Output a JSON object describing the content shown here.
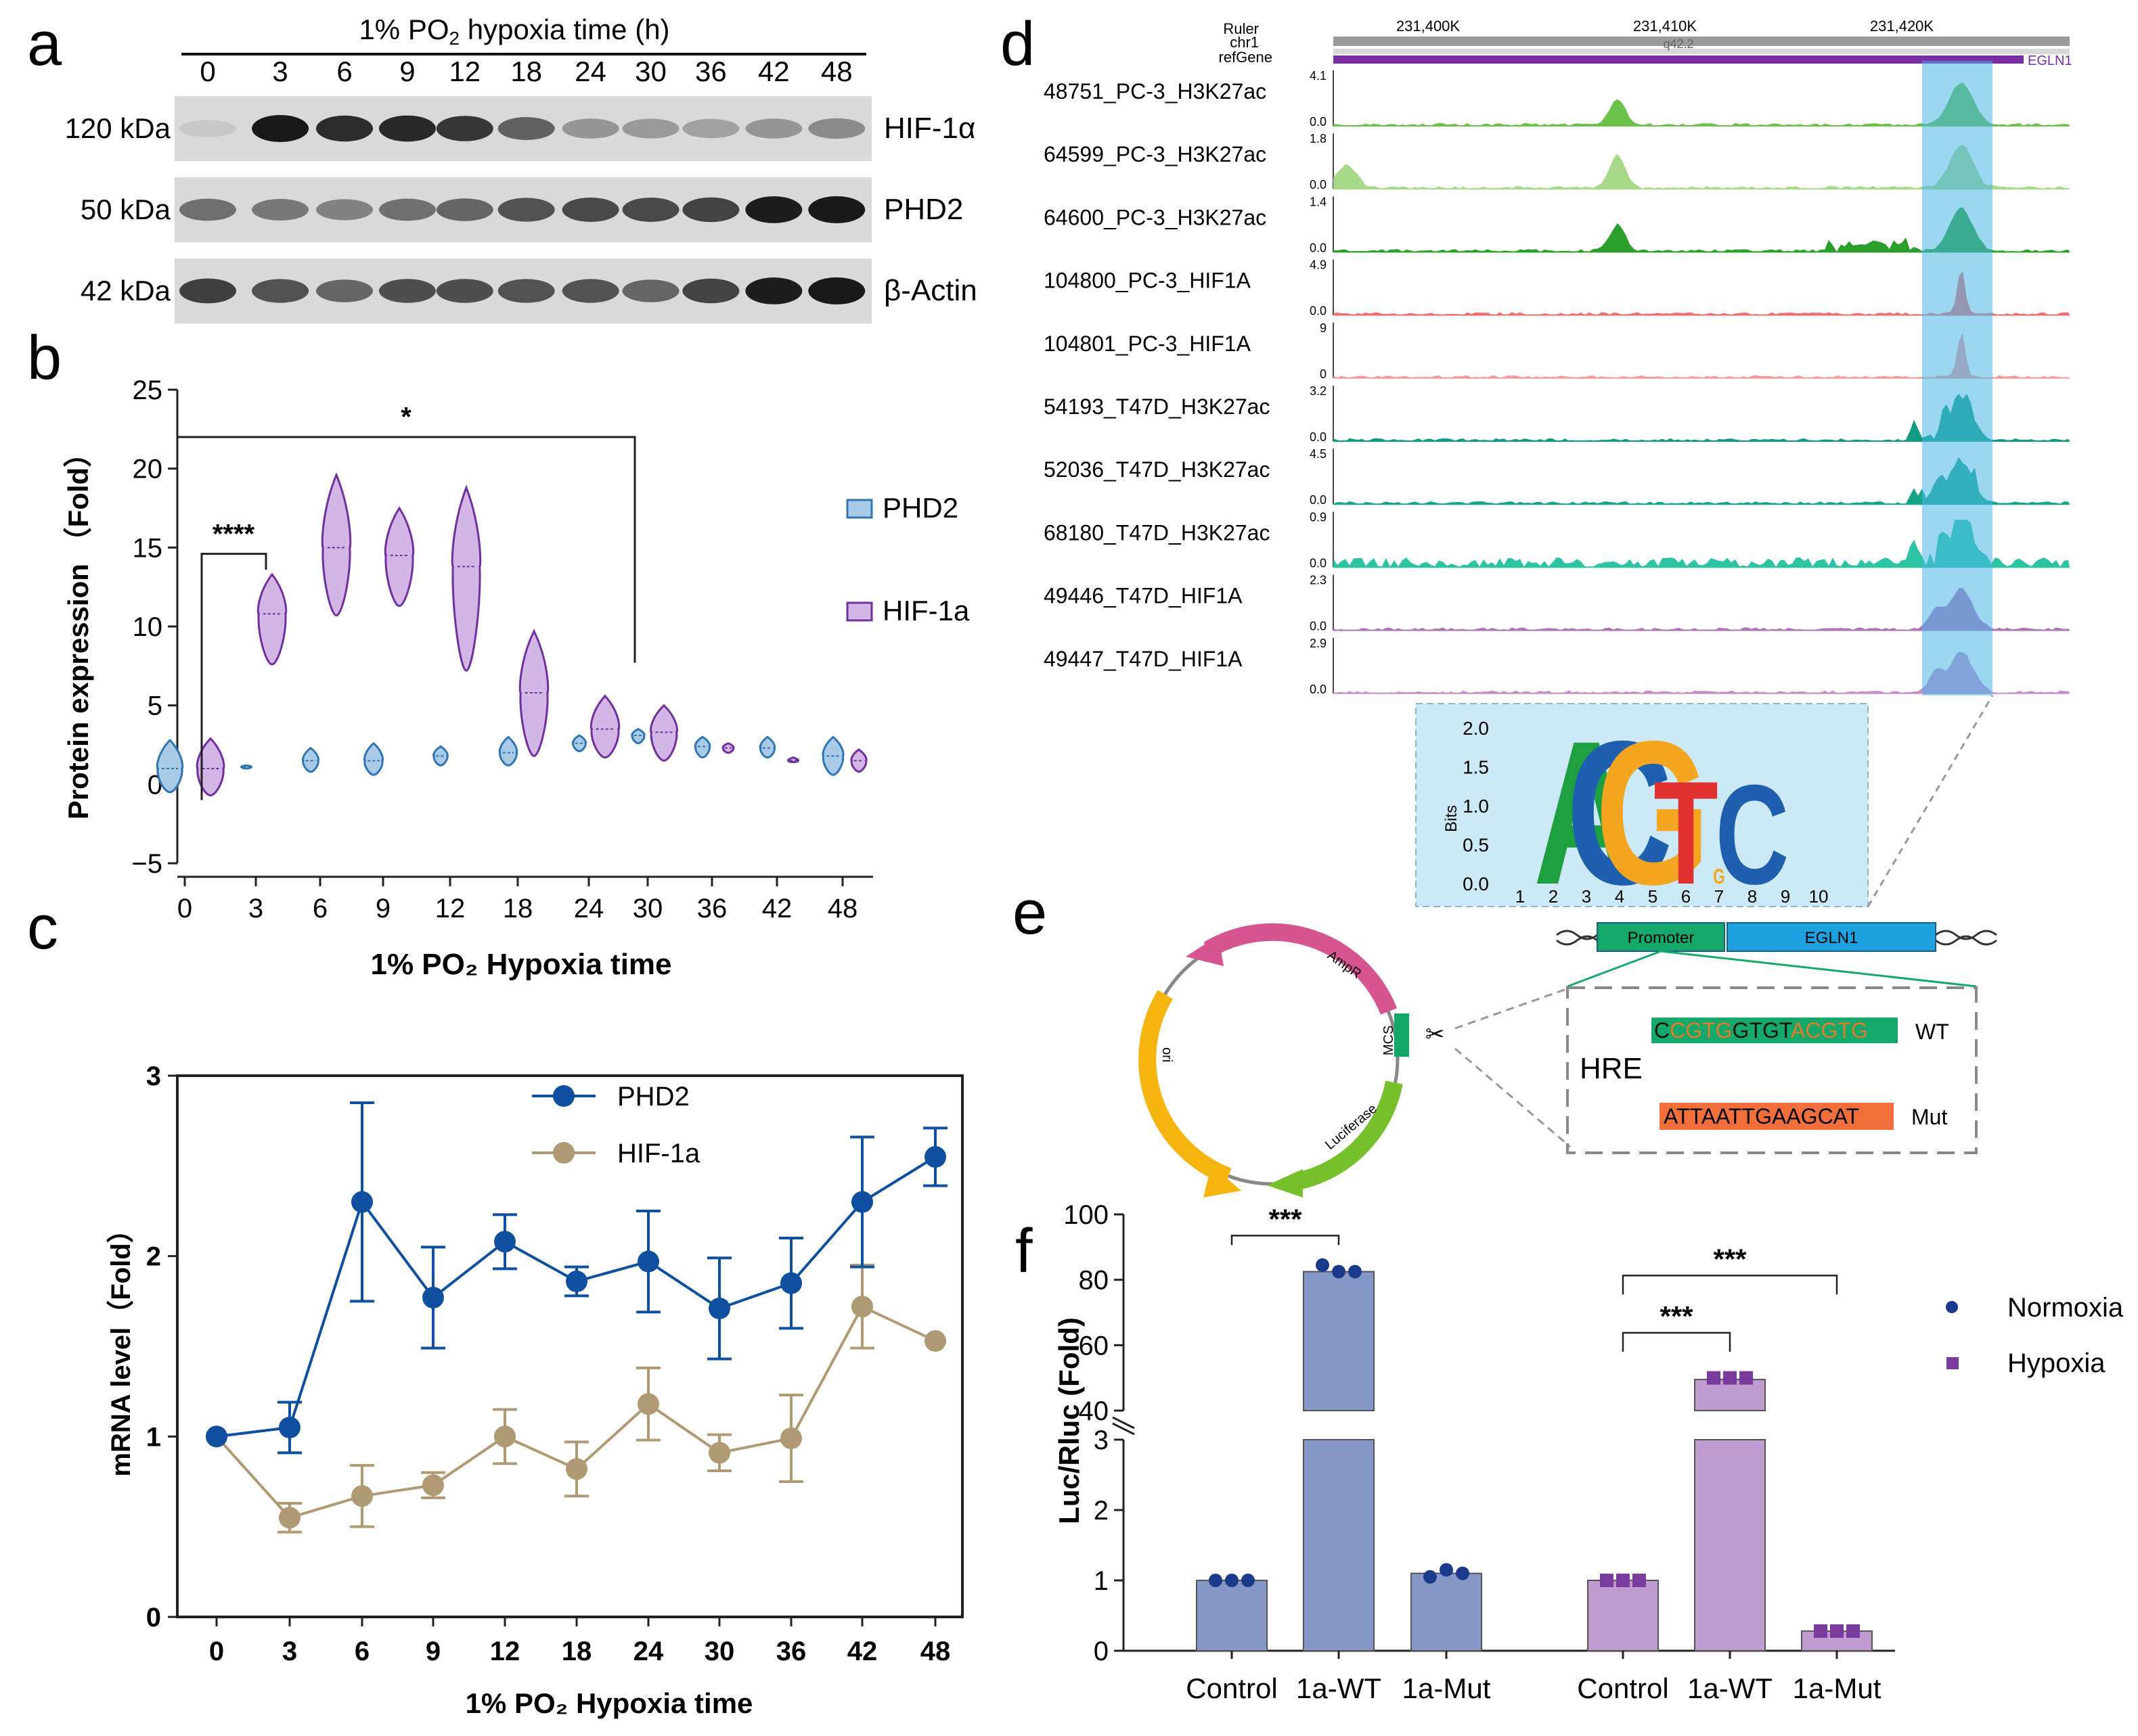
{
  "panel_letters": [
    "a",
    "b",
    "c",
    "d",
    "e",
    "f"
  ],
  "panel_a": {
    "title_prefix": "1% PO",
    "title_sub": "2",
    "title_suffix": " hypoxia time (h)",
    "timepoints": [
      "0",
      "3",
      "6",
      "9",
      "12",
      "18",
      "24",
      "30",
      "36",
      "42",
      "48"
    ],
    "rows": [
      {
        "mw": "120 kDa",
        "protein": "HIF-1α",
        "intensity": [
          0.08,
          1.0,
          0.9,
          0.92,
          0.85,
          0.62,
          0.35,
          0.32,
          0.28,
          0.35,
          0.4
        ]
      },
      {
        "mw": "50 kDa",
        "protein": "PHD2",
        "intensity": [
          0.55,
          0.5,
          0.45,
          0.55,
          0.6,
          0.7,
          0.75,
          0.75,
          0.78,
          0.98,
          1.0
        ]
      },
      {
        "mw": "42 kDa",
        "protein": "β-Actin",
        "intensity": [
          0.8,
          0.7,
          0.6,
          0.72,
          0.72,
          0.7,
          0.7,
          0.6,
          0.78,
          0.98,
          1.0
        ]
      }
    ]
  },
  "chart_data": [
    {
      "type": "violin",
      "panel": "b",
      "ylabel": "Protein expression （Fold）",
      "xlabel": "1% PO₂ Hypoxia time",
      "categories": [
        "0",
        "3",
        "6",
        "9",
        "12",
        "18",
        "24",
        "30",
        "36",
        "42",
        "48"
      ],
      "ylim": [
        -5,
        25
      ],
      "yticks": [
        "25",
        "20",
        "15",
        "10",
        "5",
        "0",
        "−5"
      ],
      "series": [
        {
          "name": "PHD2",
          "color": "#2e75b6",
          "fill": "#a9cbe8",
          "median": [
            1.0,
            1.1,
            1.5,
            1.5,
            1.8,
            2.0,
            2.6,
            3.1,
            2.4,
            2.3,
            1.8
          ],
          "min": [
            -0.5,
            1.0,
            0.8,
            0.6,
            1.2,
            1.2,
            2.1,
            2.6,
            1.7,
            1.7,
            0.6
          ],
          "max": [
            2.8,
            1.2,
            2.3,
            2.6,
            2.4,
            3.0,
            3.1,
            3.5,
            3.0,
            3.0,
            3.0
          ]
        },
        {
          "name": "HIF-1a",
          "color": "#7030a0",
          "fill": "#d3b6e6",
          "median": [
            1.0,
            10.8,
            15.0,
            14.5,
            13.8,
            5.8,
            3.5,
            3.3,
            2.3,
            1.5,
            1.5
          ],
          "min": [
            -0.7,
            7.6,
            10.7,
            11.3,
            7.2,
            1.8,
            1.7,
            1.5,
            2.0,
            1.4,
            0.8
          ],
          "max": [
            2.9,
            13.3,
            19.6,
            17.5,
            18.8,
            9.7,
            5.6,
            5.0,
            2.6,
            1.7,
            2.2
          ]
        }
      ],
      "significance": [
        {
          "from": "0",
          "to": "3",
          "label": "****"
        },
        {
          "from": "0",
          "to": "30",
          "label": "*"
        }
      ],
      "legend": "right"
    },
    {
      "type": "line",
      "panel": "c",
      "ylabel": "mRNA level（Fold）",
      "xlabel": "1% PO₂ Hypoxia time",
      "categories": [
        "0",
        "3",
        "6",
        "9",
        "12",
        "18",
        "24",
        "30",
        "36",
        "42",
        "48"
      ],
      "ylim": [
        0,
        3
      ],
      "yticks": [
        "0",
        "1",
        "2",
        "3"
      ],
      "series": [
        {
          "name": "PHD2",
          "color": "#0e4fa0",
          "values": [
            1.0,
            1.05,
            2.3,
            1.77,
            2.08,
            1.86,
            1.97,
            1.71,
            1.85,
            2.3,
            2.55
          ],
          "err": [
            0.0,
            0.14,
            0.55,
            0.28,
            0.15,
            0.08,
            0.28,
            0.28,
            0.25,
            0.36,
            0.16
          ]
        },
        {
          "name": "HIF-1a",
          "color": "#b09a73",
          "values": [
            1.0,
            0.55,
            0.67,
            0.73,
            1.0,
            0.82,
            1.18,
            0.91,
            0.99,
            1.72,
            1.53
          ],
          "err": [
            0.0,
            0.08,
            0.17,
            0.07,
            0.15,
            0.15,
            0.2,
            0.1,
            0.24,
            0.23,
            0.0
          ]
        }
      ],
      "legend": "top"
    },
    {
      "type": "bar",
      "panel": "f",
      "ylabel": "Luc/Rluc (Fold)",
      "categories": [
        "Control",
        "1a-WT",
        "1a-Mut",
        "Control",
        "1a-WT",
        "1a-Mut"
      ],
      "groups": [
        "Normoxia",
        "Normoxia",
        "Normoxia",
        "Hypoxia",
        "Hypoxia",
        "Hypoxia"
      ],
      "values": [
        1.0,
        82.5,
        1.1,
        1.0,
        49.5,
        0.28
      ],
      "points": [
        [
          1.0,
          1.0,
          1.0
        ],
        [
          84.5,
          82.5,
          82.5
        ],
        [
          1.05,
          1.15,
          1.1
        ],
        [
          1.0,
          1.0,
          1.0
        ],
        [
          50,
          50,
          50
        ],
        [
          0.28,
          0.28,
          0.28
        ]
      ],
      "lower_ylim": [
        0,
        3
      ],
      "upper_ylim": [
        40,
        100
      ],
      "lower_ticks": [
        "0",
        "1",
        "2",
        "3"
      ],
      "upper_ticks": [
        "40",
        "60",
        "80",
        "100"
      ],
      "colors": {
        "Normoxia": "#8497c6",
        "Hypoxia": "#c09bd0",
        "Normoxia_point": "#1b3a8c",
        "Hypoxia_point": "#7a3c9c"
      },
      "significance": [
        {
          "from": 0,
          "to": 1,
          "label": "***"
        },
        {
          "from": 3,
          "to": 4,
          "label": "***"
        },
        {
          "from": 3,
          "to": 5,
          "label": "***"
        }
      ],
      "legend": [
        "Normoxia",
        "Hypoxia"
      ]
    }
  ],
  "panel_d": {
    "ruler_label": "Ruler",
    "chrom_label": "chr1",
    "refgene_label": "refGene",
    "coords": [
      "231,400K",
      "231,410K",
      "231,420K"
    ],
    "band": "q42.2",
    "gene": "EGLN1",
    "tracks": [
      {
        "name": "48751_PC-3_H3K27ac",
        "max": "4.1",
        "min": "0.0",
        "color": "#6cc24a"
      },
      {
        "name": "64599_PC-3_H3K27ac",
        "max": "1.8",
        "min": "0.0",
        "color": "#a8d98a"
      },
      {
        "name": "64600_PC-3_H3K27ac",
        "max": "1.4",
        "min": "0.0",
        "color": "#2aa02a"
      },
      {
        "name": "104800_PC-3_HIF1A",
        "max": "4.9",
        "min": "0.0",
        "color": "#ef6f6f"
      },
      {
        "name": "104801_PC-3_HIF1A",
        "max": "9",
        "min": "0",
        "color": "#f59a9a"
      },
      {
        "name": "54193_T47D_H3K27ac",
        "max": "3.2",
        "min": "0.0",
        "color": "#0f9b82"
      },
      {
        "name": "52036_T47D_H3K27ac",
        "max": "4.5",
        "min": "0.0",
        "color": "#17a58a"
      },
      {
        "name": "68180_T47D_H3K27ac",
        "max": "0.9",
        "min": "0.0",
        "color": "#2cc4a4"
      },
      {
        "name": "49446_T47D_HIF1A",
        "max": "2.3",
        "min": "0.0",
        "color": "#b073b8"
      },
      {
        "name": "49447_T47D_HIF1A",
        "max": "2.9",
        "min": "0.0",
        "color": "#c58ccb"
      }
    ],
    "motif": {
      "ylabel": "Bits",
      "yticks": [
        "2.0",
        "1.5",
        "1.0",
        "0.5",
        "0.0"
      ],
      "positions": [
        "1",
        "2",
        "3",
        "4",
        "5",
        "6",
        "7",
        "8",
        "9",
        "10"
      ],
      "letters": [
        "A",
        "C",
        "G",
        "T",
        "G",
        "C"
      ],
      "colors": {
        "A": "#1fa040",
        "C": "#1f5fb0",
        "G": "#f4a621",
        "T": "#e03030"
      }
    }
  },
  "panel_e": {
    "plasmid_labels": [
      "AmpR",
      "MCS",
      "Luciferase",
      "ori"
    ],
    "promoter_label": "Promoter",
    "gene_label": "EGLN1",
    "hre_label": "HRE",
    "wt_seq_parts": [
      "C",
      "CGTG",
      "GTGT",
      "ACGTG"
    ],
    "wt_label": "WT",
    "mut_seq": "ATTAATTGAAGCAT",
    "mut_label": "Mut",
    "colors": {
      "ampr": "#d6548f",
      "ori": "#f6b40e",
      "luciferase": "#76c02b",
      "mcs": "#14a866",
      "promoter": "#15a86b",
      "egln1": "#1da1e0",
      "mut": "#f26f3c"
    }
  }
}
